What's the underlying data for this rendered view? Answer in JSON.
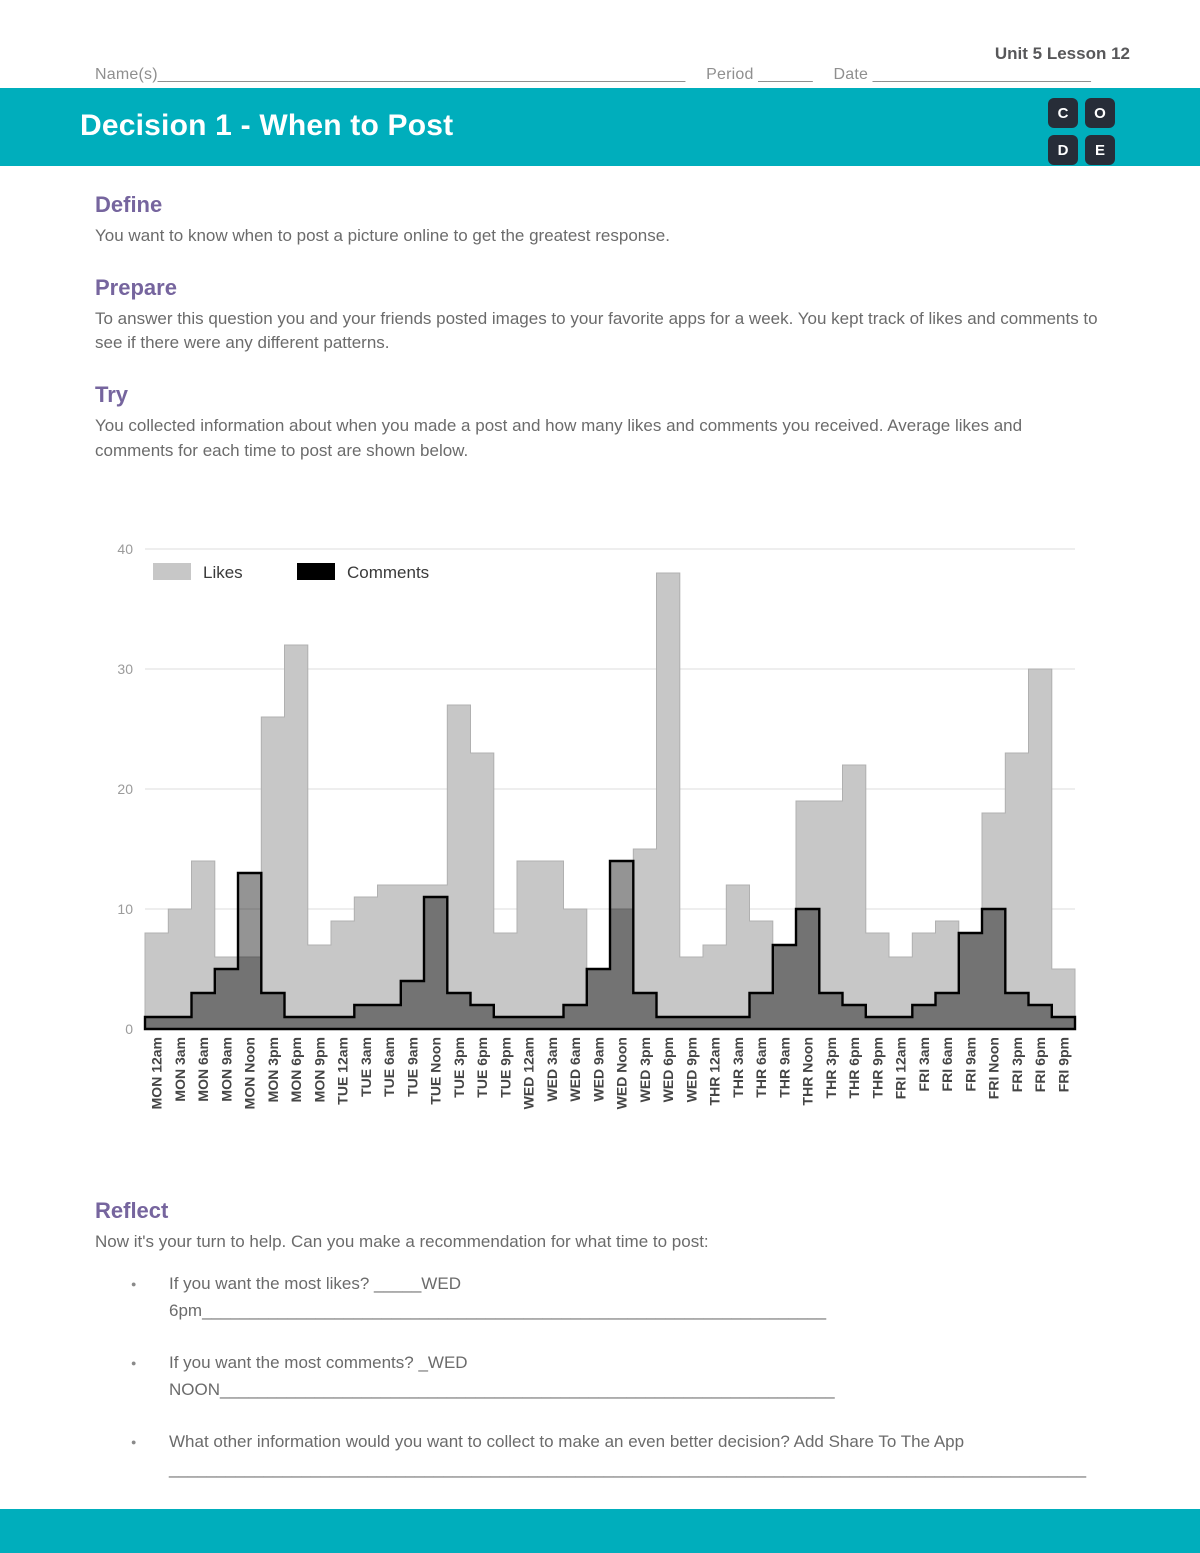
{
  "theme": {
    "accent": "#00aebc",
    "heading_color": "#76659e"
  },
  "header": {
    "unit_label": "Unit 5 Lesson 12",
    "name_label": "Name(s)",
    "name_blank": "__________________________________________________________",
    "period_label": "Period",
    "period_blank": "______",
    "date_label": "Date",
    "date_blank": "________________________"
  },
  "banner": {
    "title": "Decision 1 - When to Post",
    "logo_letters": [
      "C",
      "O",
      "D",
      "E"
    ]
  },
  "sections": {
    "define": {
      "heading": "Define",
      "body": "You want to know when to post a picture online to get the greatest response."
    },
    "prepare": {
      "heading": "Prepare",
      "body": "To answer this question you and your friends posted images to your favorite apps for a week. You kept track of likes and comments to see if there were any different patterns."
    },
    "try": {
      "heading": "Try",
      "body": "You collected information about when you made a post and how many likes and comments you received. Average likes and comments for each time to post are shown below."
    },
    "reflect": {
      "heading": "Reflect",
      "intro": "Now it's your turn to help. Can you make a recommendation for what time to post:",
      "bullets": [
        {
          "text": "If you want the most likes? _____WED",
          "text2": "6pm__________________________________________________________________"
        },
        {
          "text": "If you want the most comments? _WED",
          "text2": "NOON_________________________________________________________________"
        },
        {
          "text": "What other information would you want to collect to make an even better decision? Add Share To The App",
          "text2": "_________________________________________________________________________________________________"
        }
      ]
    }
  },
  "chart_data": {
    "type": "area",
    "subtype": "step",
    "title": "",
    "xlabel": "",
    "ylabel": "",
    "ylim": [
      0,
      40
    ],
    "yticks": [
      0,
      10,
      20,
      30,
      40
    ],
    "grid": true,
    "legend_position": "top-left",
    "categories": [
      "MON 12am",
      "MON 3am",
      "MON 6am",
      "MON 9am",
      "MON Noon",
      "MON 3pm",
      "MON 6pm",
      "MON 9pm",
      "TUE 12am",
      "TUE 3am",
      "TUE 6am",
      "TUE 9am",
      "TUE Noon",
      "TUE 3pm",
      "TUE 6pm",
      "TUE 9pm",
      "WED 12am",
      "WED 3am",
      "WED 6am",
      "WED 9am",
      "WED Noon",
      "WED 3pm",
      "WED 6pm",
      "WED 9pm",
      "THR 12am",
      "THR 3am",
      "THR 6am",
      "THR 9am",
      "THR Noon",
      "THR 3pm",
      "THR 6pm",
      "THR 9pm",
      "FRI 12am",
      "FRI 3am",
      "FRI 6am",
      "FRI 9am",
      "FRI Noon",
      "FRI 3pm",
      "FRI 6pm",
      "FRI 9pm"
    ],
    "series": [
      {
        "name": "Likes",
        "color": "#c7c7c7",
        "values": [
          8,
          10,
          14,
          6,
          6,
          26,
          32,
          7,
          9,
          11,
          12,
          12,
          12,
          27,
          23,
          8,
          14,
          14,
          10,
          5,
          10,
          15,
          38,
          6,
          7,
          12,
          9,
          7,
          19,
          19,
          22,
          8,
          6,
          8,
          9,
          8,
          18,
          23,
          30,
          5
        ]
      },
      {
        "name": "Comments",
        "color": "#000000",
        "values": [
          1,
          1,
          3,
          5,
          13,
          3,
          1,
          1,
          1,
          2,
          2,
          4,
          11,
          3,
          2,
          1,
          1,
          1,
          2,
          5,
          14,
          3,
          1,
          1,
          1,
          1,
          3,
          7,
          10,
          3,
          2,
          1,
          1,
          2,
          3,
          8,
          10,
          3,
          2,
          1
        ]
      }
    ]
  }
}
